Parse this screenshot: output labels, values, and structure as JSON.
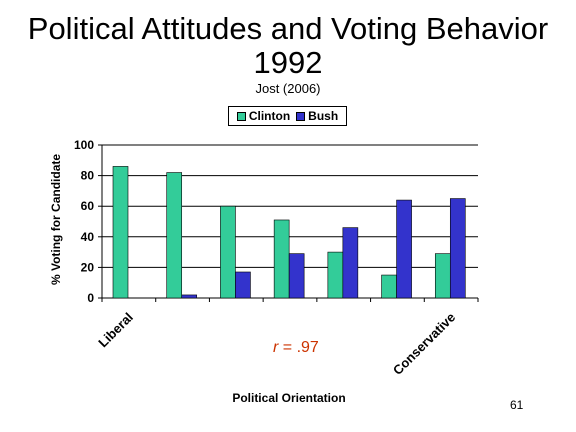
{
  "slide": {
    "title_line1": "Political Attitudes and Voting Behavior",
    "title_line2": "1992",
    "subtitle": "Jost (2006)",
    "annotation_r": "r",
    "annotation_value": " = .97",
    "slide_number": "61"
  },
  "colors": {
    "clinton": "#33CC99",
    "bush": "#3333CC",
    "annotation": "#CC3300"
  },
  "chart_data": {
    "type": "bar",
    "categories": [
      "Liberal",
      "",
      "",
      "",
      "",
      "",
      "Conservative"
    ],
    "series": [
      {
        "name": "Clinton",
        "values": [
          86,
          82,
          60,
          51,
          30,
          15,
          29
        ]
      },
      {
        "name": "Bush",
        "values": [
          0,
          2,
          17,
          29,
          46,
          64,
          65
        ]
      }
    ],
    "xlabel": "Political Orientation",
    "ylabel": "% Voting for Candidate",
    "ylim": [
      0,
      100
    ],
    "yticks": [
      "0",
      "20",
      "40",
      "60",
      "80",
      "100"
    ],
    "grid": true,
    "legend": "top"
  }
}
